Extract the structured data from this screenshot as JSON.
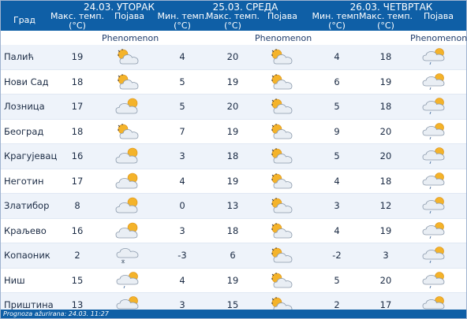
{
  "header": {
    "days": [
      "24.03. УТОРАК",
      "25.03. СРЕДА",
      "26.03. ЧЕТВРТАК"
    ],
    "city_label": "Град",
    "max_temp_label": [
      "Макс. темп.",
      "(°C)"
    ],
    "min_temp_label": [
      "Мин. темп.",
      "(°C)"
    ],
    "phen_label": "Појава",
    "phenomenon": "Phenomenon"
  },
  "rows": [
    {
      "city": "Палић",
      "d1_max": "19",
      "d1_icon": "sun-cloud-icon",
      "d2_min": "4",
      "d2_max": "20",
      "d2_icon": "sun-cloud-icon",
      "d3_min": "4",
      "d3_max": "18",
      "d3_icon": "cloud-sun-drizzle-icon"
    },
    {
      "city": "Нови Сад",
      "d1_max": "18",
      "d1_icon": "sun-cloud-icon",
      "d2_min": "5",
      "d2_max": "19",
      "d2_icon": "sun-cloud-icon",
      "d3_min": "6",
      "d3_max": "19",
      "d3_icon": "cloud-sun-drizzle-icon"
    },
    {
      "city": "Лозница",
      "d1_max": "17",
      "d1_icon": "cloud-sun-icon",
      "d2_min": "5",
      "d2_max": "20",
      "d2_icon": "sun-cloud-icon",
      "d3_min": "5",
      "d3_max": "18",
      "d3_icon": "cloud-sun-drizzle-icon"
    },
    {
      "city": "Београд",
      "d1_max": "18",
      "d1_icon": "sun-cloud-icon",
      "d2_min": "7",
      "d2_max": "19",
      "d2_icon": "sun-cloud-icon",
      "d3_min": "9",
      "d3_max": "20",
      "d3_icon": "cloud-sun-drizzle-icon"
    },
    {
      "city": "Крагујевац",
      "d1_max": "16",
      "d1_icon": "cloud-sun-icon",
      "d2_min": "3",
      "d2_max": "18",
      "d2_icon": "sun-cloud-icon",
      "d3_min": "5",
      "d3_max": "20",
      "d3_icon": "cloud-sun-drizzle-icon"
    },
    {
      "city": "Неготин",
      "d1_max": "17",
      "d1_icon": "cloud-sun-icon",
      "d2_min": "4",
      "d2_max": "19",
      "d2_icon": "sun-cloud-icon",
      "d3_min": "4",
      "d3_max": "18",
      "d3_icon": "cloud-sun-drizzle-icon"
    },
    {
      "city": "Златибор",
      "d1_max": "8",
      "d1_icon": "cloud-sun-icon",
      "d2_min": "0",
      "d2_max": "13",
      "d2_icon": "sun-cloud-icon",
      "d3_min": "3",
      "d3_max": "12",
      "d3_icon": "cloud-sun-drizzle-icon"
    },
    {
      "city": "Краљево",
      "d1_max": "16",
      "d1_icon": "cloud-sun-icon",
      "d2_min": "3",
      "d2_max": "18",
      "d2_icon": "sun-cloud-icon",
      "d3_min": "4",
      "d3_max": "19",
      "d3_icon": "cloud-sun-drizzle-icon"
    },
    {
      "city": "Копаоник",
      "d1_max": "2",
      "d1_icon": "cloud-snow-icon",
      "d2_min": "-3",
      "d2_max": "6",
      "d2_icon": "sun-cloud-icon",
      "d3_min": "-2",
      "d3_max": "3",
      "d3_icon": "cloud-sun-drizzle-icon"
    },
    {
      "city": "Ниш",
      "d1_max": "15",
      "d1_icon": "cloud-sun-drizzle-icon",
      "d2_min": "4",
      "d2_max": "19",
      "d2_icon": "sun-cloud-icon",
      "d3_min": "5",
      "d3_max": "20",
      "d3_icon": "cloud-sun-drizzle-icon"
    },
    {
      "city": "Приштина",
      "d1_max": "13",
      "d1_icon": "cloud-sun-drizzle-icon",
      "d2_min": "3",
      "d2_max": "15",
      "d2_icon": "sun-cloud-icon",
      "d3_min": "2",
      "d3_max": "17",
      "d3_icon": "cloud-sun-drizzle-icon"
    }
  ],
  "footer": {
    "text": "Prognoza ažurirana:  24.03.  11:27"
  },
  "colors": {
    "header": "#0f5fa6",
    "alt_row": "#eef3fa",
    "text": "#1b2b44"
  }
}
